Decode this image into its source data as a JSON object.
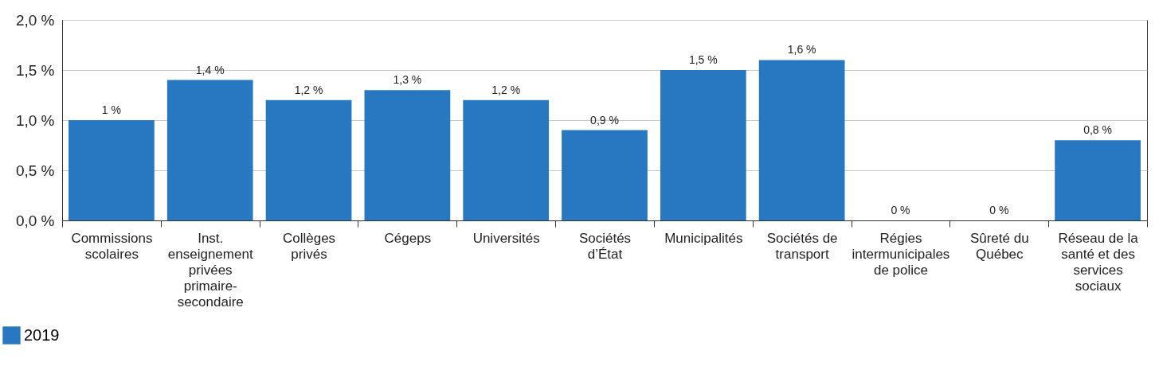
{
  "chart_data": {
    "type": "bar",
    "categories": [
      "Commissions scolaires",
      "Inst. enseignement privées primaire-secondaire",
      "Collèges privés",
      "Cégeps",
      "Universités",
      "Sociétés d’État",
      "Municipalités",
      "Sociétés de transport",
      "Régies intermunicipales de police",
      "Sûreté du Québec",
      "Réseau de la santé et des services sociaux"
    ],
    "series": [
      {
        "name": "2019",
        "color": "#2778c0",
        "values": [
          1,
          1.4,
          1.2,
          1.3,
          1.2,
          0.9,
          1.5,
          1.6,
          0,
          0,
          0.8
        ],
        "value_labels": [
          "1 %",
          "1,4 %",
          "1,2 %",
          "1,3 %",
          "1,2 %",
          "0,9 %",
          "1,5 %",
          "1,6 %",
          "0 %",
          "0 %",
          "0,8 %"
        ]
      }
    ],
    "ylim": [
      0,
      2
    ],
    "yticks": [
      {
        "value": 0,
        "label": "0,0 %"
      },
      {
        "value": 0.5,
        "label": "0,5 %"
      },
      {
        "value": 1,
        "label": "1,0 %"
      },
      {
        "value": 1.5,
        "label": "1,5 %"
      },
      {
        "value": 2,
        "label": "2,0 %"
      }
    ],
    "grid": "y",
    "legend": "bottom left"
  }
}
